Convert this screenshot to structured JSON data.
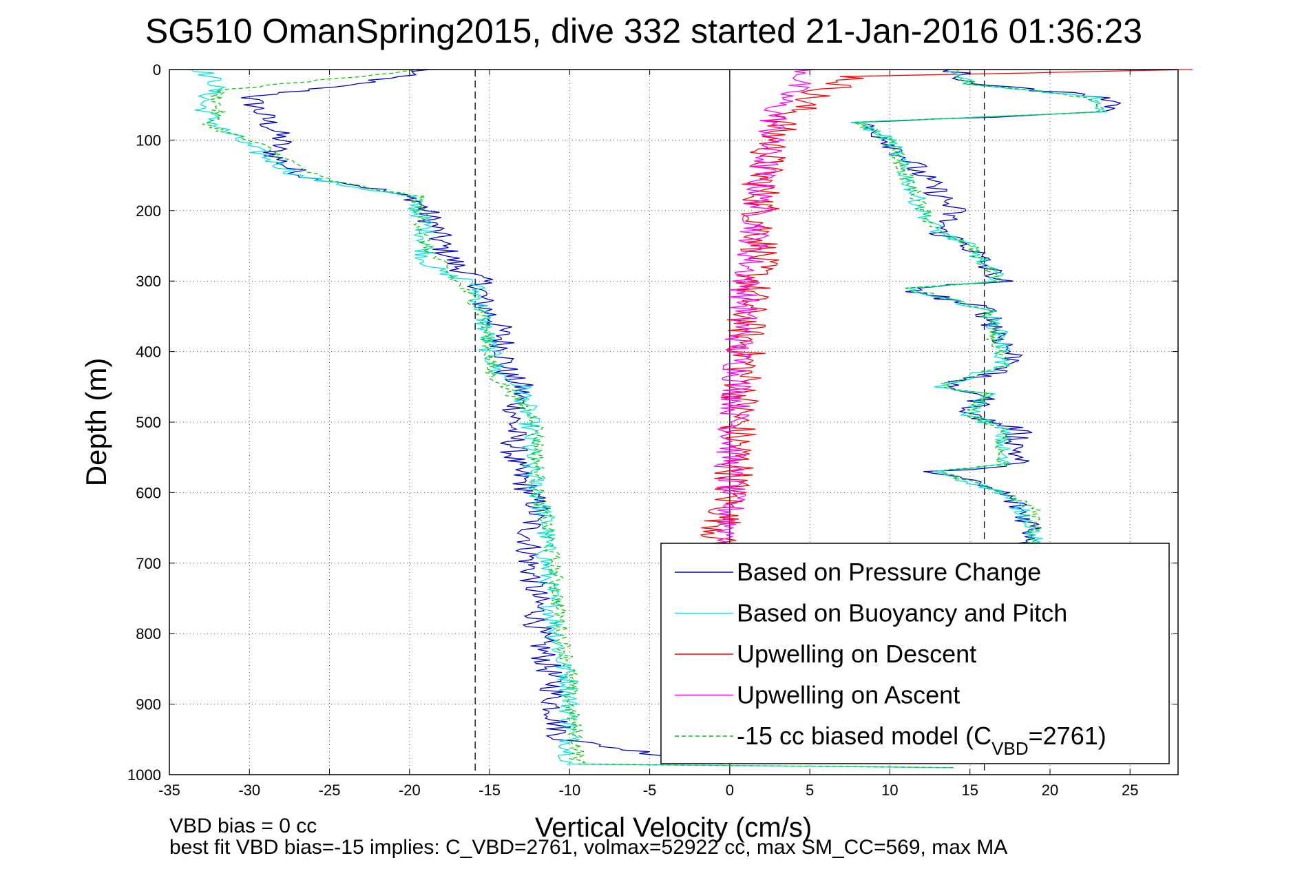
{
  "chart_data": {
    "type": "line",
    "title": "SG510 OmanSpring2015, dive 332 started 21-Jan-2016 01:36:23",
    "xlabel": "Vertical Velocity (cm/s)",
    "ylabel": "Depth (m)",
    "xlim": [
      -35,
      28
    ],
    "ylim": [
      0,
      1000
    ],
    "y_reversed": true,
    "grid": true,
    "x_ticks": [
      -35,
      -30,
      -25,
      -20,
      -15,
      -10,
      -5,
      0,
      5,
      10,
      15,
      20,
      25
    ],
    "y_ticks": [
      0,
      100,
      200,
      300,
      400,
      500,
      600,
      700,
      800,
      900,
      1000
    ],
    "reference_lines": [
      {
        "x": -15.9,
        "style": "dashed",
        "color": "#000000"
      },
      {
        "x": 0,
        "style": "solid",
        "color": "#000000"
      },
      {
        "x": 15.9,
        "style": "dashed",
        "color": "#000000"
      }
    ],
    "legend": {
      "placement": "bottom-right",
      "entries": [
        {
          "label": "Based on Pressure Change",
          "color": "#0000cc",
          "style": "solid"
        },
        {
          "label": "Based on Buoyancy and Pitch",
          "color": "#00e5e5",
          "style": "solid"
        },
        {
          "label": "Upwelling on Descent",
          "color": "#ff0000",
          "style": "solid"
        },
        {
          "label": "Upwelling on Ascent",
          "color": "#ff00ff",
          "style": "solid"
        },
        {
          "label": "-15 cc biased model (C",
          "sub": "VBD",
          "suffix": "=2761)",
          "color": "#00cc00",
          "style": "dashed"
        }
      ]
    },
    "series": [
      {
        "name": "Based on Pressure Change",
        "color": "#0000cc",
        "dash": false,
        "noise": 0.9,
        "x": [
          -19,
          -22,
          -30,
          -29,
          -28,
          -28.5,
          -27.5,
          -26,
          -24,
          -22,
          -19.5,
          -19,
          -18.5,
          -18,
          -17,
          -15.5,
          -15.5,
          -14.5,
          -14,
          -14,
          -13,
          -13.5,
          -13.5,
          -12.5,
          -12,
          -12.5,
          -12.5,
          -12,
          -12,
          -11.5,
          -11,
          -11,
          -10.5,
          -0.5
        ],
        "y": [
          0,
          15,
          40,
          70,
          100,
          120,
          140,
          155,
          160,
          170,
          185,
          200,
          220,
          250,
          280,
          300,
          330,
          360,
          400,
          430,
          450,
          500,
          560,
          600,
          620,
          650,
          700,
          760,
          800,
          840,
          870,
          900,
          950,
          985
        ]
      },
      {
        "name": "Based on Buoyancy and Pitch",
        "color": "#00e5e5",
        "dash": false,
        "noise": 0.7,
        "x": [
          -33,
          -32,
          -33,
          -32,
          -30,
          -27,
          -25,
          -20,
          -19,
          -19,
          -18,
          -16,
          -15.5,
          -15,
          -14.5,
          -13,
          -12.5,
          -12.5,
          -12,
          -11.5,
          -11.5,
          -11,
          -10.5,
          -10,
          -10,
          -10,
          14
        ],
        "y": [
          0,
          20,
          50,
          80,
          110,
          150,
          160,
          180,
          220,
          270,
          290,
          300,
          340,
          400,
          430,
          450,
          500,
          560,
          600,
          640,
          700,
          780,
          840,
          870,
          920,
          985,
          990
        ]
      },
      {
        "name": "Upwelling on Descent",
        "color": "#ff0000",
        "dash": false,
        "noise": 1.3,
        "x": [
          28,
          8,
          5,
          3,
          2,
          2,
          1.5,
          1,
          1,
          0.5,
          0.5,
          0,
          -0.5,
          -1,
          -1
        ],
        "y": [
          0,
          10,
          40,
          80,
          150,
          250,
          300,
          350,
          420,
          500,
          560,
          600,
          650,
          680,
          690
        ]
      },
      {
        "name": "Upwelling on Ascent",
        "color": "#ff00ff",
        "dash": false,
        "noise": 1.0,
        "x": [
          5,
          3,
          2,
          1.5,
          1,
          0.8,
          0.5,
          0.5,
          0,
          0,
          0
        ],
        "y": [
          0,
          50,
          150,
          250,
          300,
          360,
          400,
          450,
          560,
          640,
          680
        ]
      },
      {
        "name": "-15 cc biased model (CVBD=2761)",
        "color": "#00cc00",
        "dash": true,
        "noise": 0.5,
        "x": [
          -19,
          -32,
          -32,
          -32.5,
          -29,
          -26,
          -24.5,
          -19.5,
          -19,
          -17.5,
          -15.5,
          -15,
          -15,
          -14,
          -12,
          -12,
          -11.5,
          -11,
          -10.5,
          -10,
          -10,
          -9.5,
          -9.5,
          14
        ],
        "y": [
          0,
          30,
          60,
          80,
          110,
          150,
          160,
          180,
          250,
          290,
          340,
          400,
          430,
          450,
          500,
          600,
          640,
          700,
          800,
          850,
          900,
          950,
          985,
          990
        ]
      },
      {
        "name": "Based on Pressure Change (ascent)",
        "color": "#0000cc",
        "dash": false,
        "noise": 0.9,
        "x": [
          14,
          15,
          24,
          24,
          8,
          10,
          12,
          14,
          13,
          15,
          16,
          17,
          11,
          16,
          17,
          18,
          13,
          16,
          15,
          18,
          18,
          13,
          17,
          18,
          19,
          19,
          17
        ],
        "y": [
          0,
          20,
          40,
          60,
          75,
          100,
          150,
          200,
          230,
          250,
          280,
          300,
          310,
          340,
          380,
          420,
          450,
          460,
          490,
          510,
          560,
          570,
          600,
          620,
          650,
          670,
          680
        ]
      },
      {
        "name": "Based on Buoyancy and Pitch (ascent)",
        "color": "#00e5e5",
        "dash": false,
        "noise": 0.6,
        "x": [
          14,
          15,
          23,
          23,
          8,
          10,
          11,
          12,
          13,
          15,
          16,
          17,
          11,
          16,
          17,
          17,
          13,
          16,
          15,
          17,
          17,
          13,
          17,
          18,
          19,
          19,
          17
        ],
        "y": [
          0,
          20,
          40,
          60,
          75,
          100,
          150,
          200,
          230,
          250,
          280,
          300,
          310,
          340,
          380,
          420,
          450,
          460,
          490,
          510,
          560,
          570,
          600,
          620,
          650,
          670,
          680
        ]
      },
      {
        "name": "-15 cc biased model (ascent)",
        "color": "#00cc00",
        "dash": true,
        "noise": 0.5,
        "x": [
          14,
          15,
          22.5,
          23,
          8,
          10,
          11,
          12,
          13,
          15,
          16,
          17,
          11,
          16,
          16.5,
          17,
          13,
          16,
          15,
          17,
          17,
          13,
          17,
          19,
          19,
          19,
          17
        ],
        "y": [
          0,
          20,
          40,
          60,
          75,
          100,
          150,
          200,
          230,
          250,
          280,
          300,
          310,
          340,
          380,
          420,
          450,
          460,
          490,
          510,
          560,
          570,
          600,
          620,
          650,
          670,
          680
        ]
      }
    ],
    "annotations": [
      "VBD bias = 0 cc",
      "best fit VBD bias=-15 implies: C_VBD=2761, volmax=52922 cc, max SM_CC=569, max MA"
    ]
  }
}
